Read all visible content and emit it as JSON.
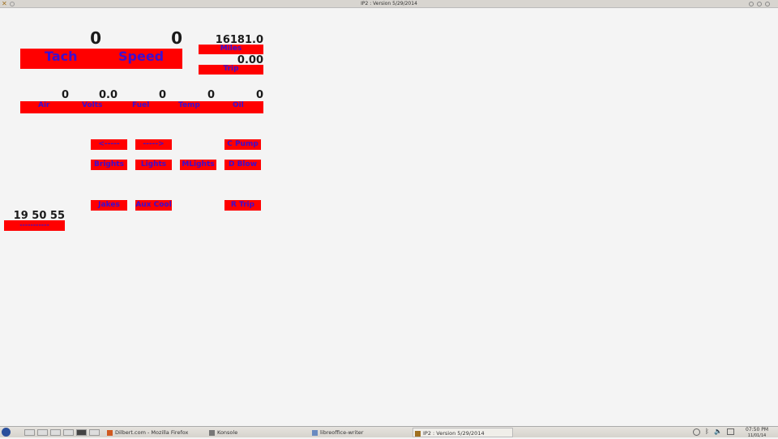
{
  "window": {
    "title": "IP2 : Version 5/29/2014"
  },
  "gauges": {
    "tach_value": "0",
    "speed_value": "0",
    "tach_label": "Tach",
    "speed_label": "Speed",
    "miles_value": "16181.0",
    "miles_label": "Miles",
    "trip_value": "0.00",
    "trip_label": "Trip"
  },
  "sensors": [
    {
      "label": "Air",
      "value": "0"
    },
    {
      "label": "Volts",
      "value": "0.0"
    },
    {
      "label": "Fuel",
      "value": "0"
    },
    {
      "label": "Temp",
      "value": "0"
    },
    {
      "label": "Oil",
      "value": "0"
    }
  ],
  "buttons": {
    "prev": "<-----",
    "next": "----->",
    "c_pump": "C Pump",
    "brights": "Brights",
    "lights": "Lights",
    "mlights": "MLights",
    "d_blow": "D Blow",
    "jakes": "Jakes",
    "aux_cool": "Aux Cool",
    "r_trip": "R Trip"
  },
  "clock": {
    "time": "19 50 55",
    "bar": "-----------"
  },
  "taskbar": {
    "tasks": [
      "Dilbert.com - Mozilla Firefox",
      "Konsole",
      "libreoffice-writer",
      "IP2 : Version 5/29/2014"
    ],
    "time": "07:50 PM",
    "date": "11/01/14"
  }
}
